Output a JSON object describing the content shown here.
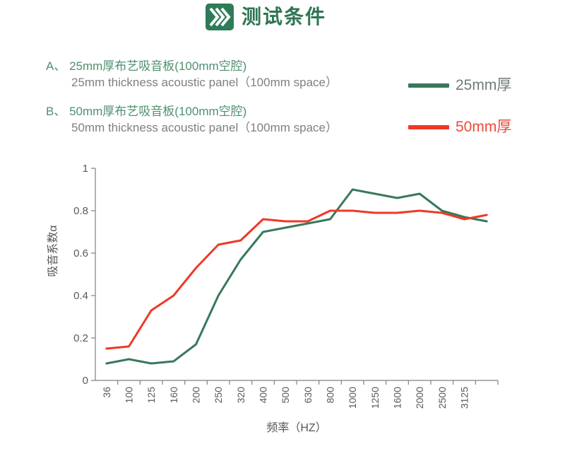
{
  "header": {
    "title": "测试条件",
    "icon": "triple-chevron-right-icon"
  },
  "conditions": [
    {
      "prefix": "A、",
      "cn": "25mm厚布艺吸音板(100mm空腔)",
      "en": "25mm thickness acoustic panel（100mm space）"
    },
    {
      "prefix": "B、",
      "cn": "50mm厚布艺吸音板(100mm空腔)",
      "en": "50mm thickness acoustic panel（100mm space）"
    }
  ],
  "legend": [
    {
      "label": "25mm厚",
      "color": "#37795A",
      "label_color": "#6F7D76"
    },
    {
      "label": "50mm厚",
      "color": "#EF3827",
      "label_color": "#EC4937"
    }
  ],
  "chart_data": {
    "type": "line",
    "title": "",
    "xlabel": "频率（HZ）",
    "ylabel": "吸音系数α",
    "categories": [
      "36",
      "100",
      "125",
      "160",
      "200",
      "250",
      "320",
      "400",
      "500",
      "630",
      "800",
      "1000",
      "1250",
      "1600",
      "2000",
      "2500",
      "3125",
      ""
    ],
    "series": [
      {
        "name": "25mm厚",
        "color": "#37795A",
        "values": [
          0.08,
          0.1,
          0.08,
          0.09,
          0.17,
          0.4,
          0.57,
          0.7,
          0.72,
          0.74,
          0.76,
          0.9,
          0.88,
          0.86,
          0.88,
          0.8,
          0.77,
          0.75
        ]
      },
      {
        "name": "50mm厚",
        "color": "#EF3827",
        "values": [
          0.15,
          0.16,
          0.33,
          0.4,
          0.53,
          0.64,
          0.66,
          0.76,
          0.75,
          0.75,
          0.8,
          0.8,
          0.79,
          0.79,
          0.8,
          0.79,
          0.76,
          0.78
        ]
      }
    ],
    "ylim": [
      0,
      1
    ],
    "yticks": [
      "0",
      "0.2",
      "0.4",
      "0.6",
      "0.8",
      "1"
    ],
    "grid": false,
    "legend_position": "top-right"
  },
  "colors": {
    "title_green": "#2E7554",
    "icon_green": "#2F7B58",
    "cn_green": "#4E9070",
    "text_gray": "#7F7F7F",
    "axis_gray": "#808080",
    "tick_text": "#595959"
  }
}
